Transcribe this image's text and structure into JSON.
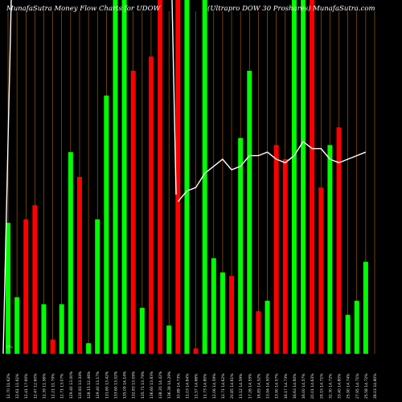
{
  "title_left": "MunafaSutra  Money Flow  Charts for UDOW",
  "title_right": "(Ultrapro  DOW 30  Proshares)  MunafaSutra.com",
  "y_marker": "0%",
  "chart_data": {
    "type": "bar",
    "title": "MunafaSutra  Money Flow  Charts for UDOW (Ultrapro  DOW 30  Proshares)  MunafaSutra.com",
    "ylim": [
      0,
      100
    ],
    "colors": {
      "up": "#00ff00",
      "down": "#ff0000",
      "grid": "#b86a0a",
      "line": "#ffffff",
      "background": "#000000"
    },
    "categories": [
      "12.70 11.62%",
      "12.61 11.61%",
      "12.41 17.60%",
      "12.47 12.60%",
      "12.39 11.56%",
      "12.21 11.79%",
      "12.71 13.07%",
      "129.40 13.00%",
      "130.83 13.34%",
      "128.15 12.46%",
      "129.40 13.17%",
      "131.60 13.42%",
      "133.60 13.02%",
      "135.09 14.14%",
      "132.83 13.09%",
      "135.71 13.79%",
      "136.60 13.83%",
      "138.20 14.42%",
      "136.39 14.29%",
      "10.88 14.73%",
      "11.03 14.84%",
      "11.57 14.66%",
      "11.73 14.80%",
      "12.06 14.59%",
      "12.71 14.62%",
      "20.85 14.61%",
      "13.12 14.59%",
      "17.26 14.55%",
      "16.85 14.52%",
      "13.94 14.50%",
      "13.90 14.57%",
      "16.17 14.73%",
      "16.63 14.60%",
      "16.00 14.57%",
      "20.01 14.63%",
      "29.15 14.71%",
      "32.30 14.72%",
      "33.40 14.80%",
      "25.90 14.74%",
      "27.95 14.71%",
      "25.58 14.72%",
      "28.03 14.80%"
    ],
    "series": [
      {
        "values": [
          37,
          16,
          38,
          42,
          14,
          4,
          14,
          57,
          50,
          3,
          38,
          73,
          100,
          100,
          80,
          13,
          84,
          100,
          8,
          100,
          100,
          1.5,
          100,
          27,
          23,
          22,
          61,
          80,
          12,
          15,
          59,
          55,
          100,
          100,
          100,
          47,
          59,
          64,
          11,
          15,
          26,
          0
        ],
        "colors": [
          "up",
          "up",
          "down",
          "down",
          "up",
          "down",
          "up",
          "up",
          "down",
          "up",
          "up",
          "up",
          "up",
          "up",
          "down",
          "up",
          "down",
          "down",
          "up",
          "down",
          "up",
          "down",
          "up",
          "up",
          "up",
          "down",
          "up",
          "up",
          "down",
          "up",
          "down",
          "down",
          "up",
          "up",
          "down",
          "down",
          "up",
          "down",
          "up",
          "up",
          "up",
          "up"
        ]
      }
    ],
    "line": [
      null,
      null,
      null,
      null,
      null,
      null,
      null,
      null,
      null,
      null,
      null,
      null,
      null,
      null,
      null,
      null,
      null,
      null,
      null,
      43,
      46,
      47,
      51,
      53,
      55,
      52,
      53,
      56,
      56,
      57,
      55,
      54,
      56,
      60,
      58,
      58,
      55,
      54,
      55,
      56,
      57,
      0
    ]
  }
}
